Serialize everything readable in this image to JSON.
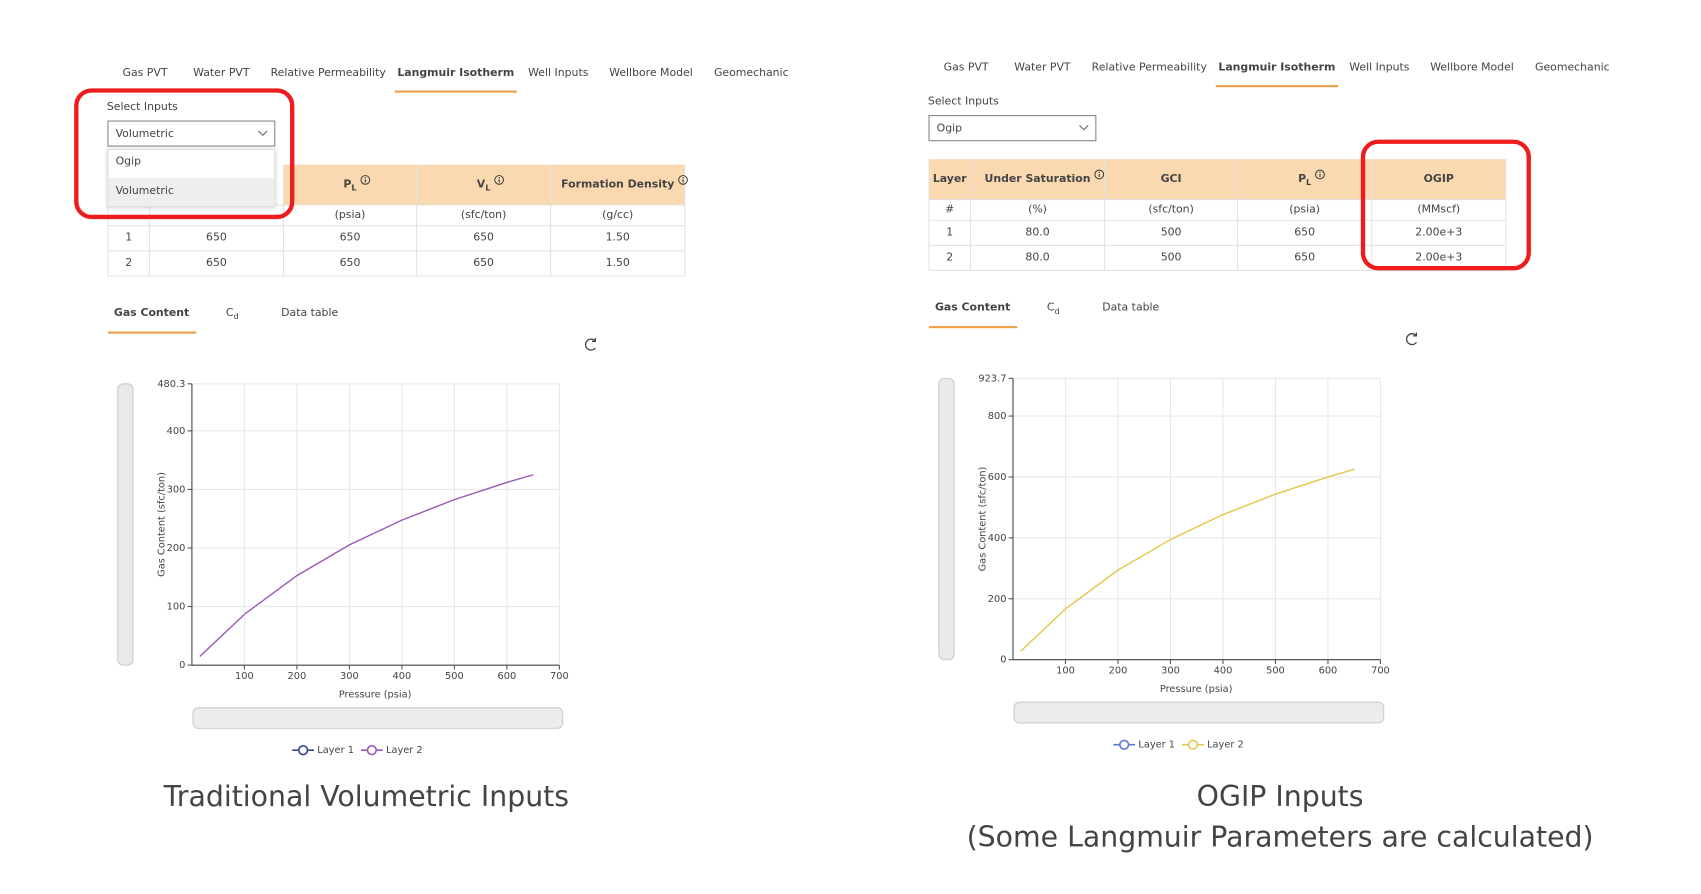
{
  "panels": [
    {
      "tabs": [
        "Gas PVT",
        "Water PVT",
        "Relative Permeability",
        "Langmuir Isotherm",
        "Well Inputs",
        "Wellbore Model",
        "Geomechanic"
      ],
      "active_tab": 3,
      "select": {
        "label": "Select Inputs",
        "value": "Volumetric",
        "options": [
          "Ogip",
          "Volumetric"
        ]
      },
      "table": {
        "headers": [
          {
            "text": "P",
            "sub": "L",
            "info": true
          },
          {
            "text": "V",
            "sub": "L",
            "info": true
          },
          {
            "text": "Formation Density",
            "info": true
          }
        ],
        "units": [
          "(psia)",
          "(sfc/ton)",
          "(g/cc)"
        ],
        "rows": [
          [
            "1",
            "650",
            "650",
            "650",
            "1.50"
          ],
          [
            "2",
            "650",
            "650",
            "650",
            "1.50"
          ]
        ]
      },
      "subtabs": [
        {
          "text": "Gas Content"
        },
        {
          "text": "C",
          "sub": "d"
        },
        {
          "text": "Data table"
        }
      ],
      "chart": {
        "type": "line",
        "y_label": "Gas Content (sfc/ton)",
        "x_label": "Pressure (psia)",
        "xlim": [
          0,
          700
        ],
        "xticks": [
          100,
          200,
          300,
          400,
          500,
          600,
          700
        ],
        "ylim": [
          0,
          480.3
        ],
        "yticks": [
          0,
          100,
          200,
          300,
          400,
          480.3
        ],
        "series": [
          {
            "name": "Layer 1",
            "color": "#34468f"
          },
          {
            "name": "Layer 2",
            "color": "#9b59b6",
            "x": [
              15,
              100,
              200,
              300,
              400,
              500,
              600,
              650
            ],
            "values": [
              14.7,
              86.7,
              152.9,
              205.3,
              247.6,
              282.6,
              312,
              325
            ]
          }
        ]
      },
      "caption": [
        "Traditional Volumetric Inputs"
      ]
    },
    {
      "tabs": [
        "Gas PVT",
        "Water PVT",
        "Relative Permeability",
        "Langmuir Isotherm",
        "Well Inputs",
        "Wellbore Model",
        "Geomechanic"
      ],
      "active_tab": 3,
      "select": {
        "label": "Select Inputs",
        "value": "Ogip"
      },
      "table": {
        "headers": [
          {
            "text": "Layer"
          },
          {
            "text": "Under Saturation",
            "info": true
          },
          {
            "text": "GCI"
          },
          {
            "text": "P",
            "sub": "L",
            "info": true
          },
          {
            "text": "OGIP"
          }
        ],
        "units": [
          "#",
          "(%)",
          "(sfc/ton)",
          "(psia)",
          "(MMscf)"
        ],
        "rows": [
          [
            "1",
            "80.0",
            "500",
            "650",
            "2.00e+3"
          ],
          [
            "2",
            "80.0",
            "500",
            "650",
            "2.00e+3"
          ]
        ]
      },
      "subtabs": [
        {
          "text": "Gas Content"
        },
        {
          "text": "C",
          "sub": "d"
        },
        {
          "text": "Data table"
        }
      ],
      "chart": {
        "type": "line",
        "y_label": "Gas Content (sfc/ton)",
        "x_label": "Pressure (psia)",
        "xlim": [
          0,
          700
        ],
        "xticks": [
          100,
          200,
          300,
          400,
          500,
          600,
          700
        ],
        "ylim": [
          0,
          923.7
        ],
        "yticks": [
          0,
          200,
          400,
          600,
          800,
          923.7
        ],
        "series": [
          {
            "name": "Layer 1",
            "color": "#5b7bd5"
          },
          {
            "name": "Layer 2",
            "color": "#e2c84c",
            "x": [
              15,
              100,
              200,
              300,
              400,
              500,
              600,
              650
            ],
            "values": [
              28.2,
              166.7,
              294.1,
              394.7,
              476.2,
              543.5,
              600,
              625
            ]
          }
        ]
      },
      "caption": [
        "OGIP Inputs",
        "(Some Langmuir Parameters are calculated)"
      ]
    }
  ]
}
